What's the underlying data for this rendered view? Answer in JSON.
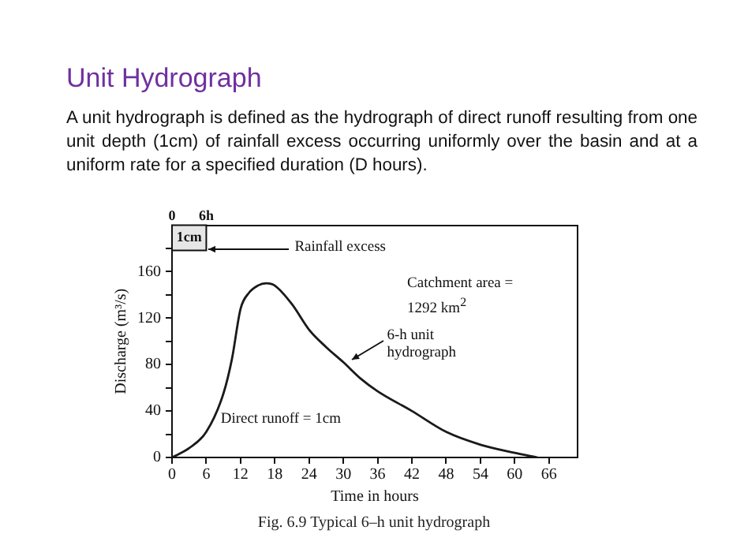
{
  "chart_data": {
    "type": "line",
    "title": "Unit Hydrograph",
    "subtitle": "A unit hydrograph is defined as the hydrograph of direct runoff resulting from one unit depth (1cm) of rainfall excess occurring uniformly over the basin and at a uniform rate for a specified duration (D hours).",
    "xlabel": "Time in hours",
    "ylabel": "Discharge (m³/s)",
    "x": [
      0,
      3,
      6,
      9,
      10.5,
      12,
      13.5,
      15,
      16.5,
      18,
      21,
      24,
      27,
      30,
      33,
      36,
      42,
      48,
      54,
      60,
      64
    ],
    "series": [
      {
        "color": "#1a1a1a",
        "values": [
          0,
          8,
          22,
          55,
          85,
          128,
          142,
          148,
          150,
          148,
          132,
          110,
          95,
          82,
          68,
          57,
          40,
          22,
          11,
          4,
          0
        ]
      }
    ],
    "xlim": [
      0,
      71
    ],
    "xticks": [
      0,
      6,
      12,
      18,
      24,
      30,
      36,
      42,
      48,
      54,
      60,
      66
    ],
    "ylim": [
      0,
      200
    ],
    "yticks": [
      0,
      {
        "value": 20,
        "label": null
      },
      40,
      {
        "value": 60,
        "label": null
      },
      80,
      {
        "value": 100,
        "label": null
      },
      120,
      {
        "value": 140,
        "label": null
      },
      160,
      {
        "value": 180,
        "label": null
      }
    ],
    "x2lim": [
      0,
      71
    ],
    "x2ticks": [
      0,
      {
        "value": 6,
        "label": "6h"
      }
    ],
    "bands": [
      {
        "axis": "x",
        "from": 0,
        "to": 6,
        "label": "1cm"
      }
    ],
    "annotations": [
      {
        "text": "Rainfall excess",
        "x": 6,
        "y": 180
      },
      "Catchment area = 1292 km$^{2}$",
      {
        "text": "6-h unit hydrograph",
        "x": 31,
        "y": 82
      },
      "Direct runoff = 1cm",
      "Fig. 6.9   Typical 6–h unit hydrograph"
    ],
    "grid": false,
    "legend": false,
    "marker": "none",
    "line_style": "solid"
  }
}
